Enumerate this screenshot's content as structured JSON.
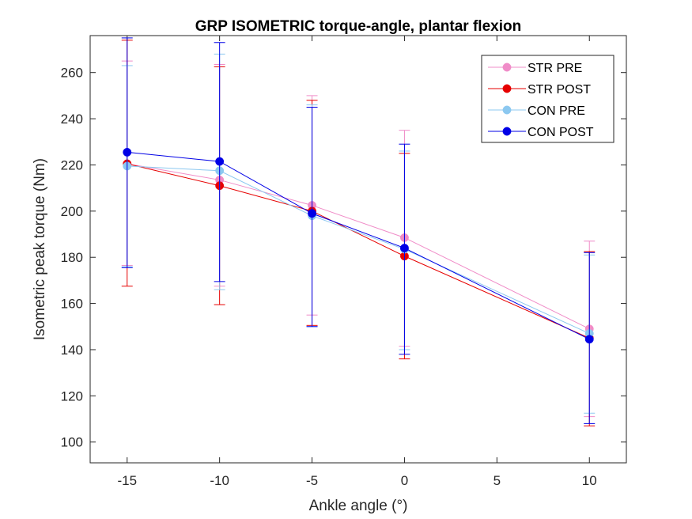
{
  "chart_data": {
    "type": "line",
    "title": "GRP ISOMETRIC torque-angle, plantar flexion",
    "xlabel": "Ankle angle (°)",
    "ylabel": "Isometric peak torque (Nm)",
    "xlim": [
      -17,
      12
    ],
    "ylim": [
      91,
      276
    ],
    "xticks": [
      -15,
      -10,
      -5,
      0,
      5,
      10
    ],
    "xtick_labels": [
      "-15",
      "-10",
      "-5",
      "0",
      "5",
      "10"
    ],
    "yticks": [
      100,
      120,
      140,
      160,
      180,
      200,
      220,
      240,
      260
    ],
    "ytick_labels": [
      "100",
      "120",
      "140",
      "160",
      "180",
      "200",
      "220",
      "240",
      "260"
    ],
    "grid": false,
    "legend_position": "top-right",
    "x": [
      -15,
      -10,
      -5,
      0,
      10
    ],
    "series": [
      {
        "name": "STR PRE",
        "color": "#f08cc8",
        "values": [
          220.5,
          213.5,
          202.5,
          188.5,
          149
        ],
        "error_low": [
          176.5,
          167.5,
          155,
          141.5,
          111
        ],
        "error_high": [
          265,
          263.5,
          250,
          235,
          187
        ]
      },
      {
        "name": "STR POST",
        "color": "#e60000",
        "values": [
          220.5,
          211,
          200,
          180.5,
          145
        ],
        "error_low": [
          167.5,
          159.5,
          150.5,
          136,
          107
        ],
        "error_high": [
          274,
          262.5,
          248,
          225,
          182.5
        ]
      },
      {
        "name": "CON PRE",
        "color": "#8cc8f0",
        "values": [
          219.5,
          217.5,
          198,
          183.5,
          147
        ],
        "error_low": [
          176,
          166,
          150,
          140,
          112.5
        ],
        "error_high": [
          263,
          268,
          246,
          226,
          181
        ]
      },
      {
        "name": "CON POST",
        "color": "#0000e6",
        "values": [
          225.5,
          221.5,
          199,
          184,
          144.5
        ],
        "error_low": [
          175.5,
          169.5,
          150,
          138,
          108
        ],
        "error_high": [
          275,
          273,
          245,
          229,
          182
        ]
      }
    ]
  }
}
